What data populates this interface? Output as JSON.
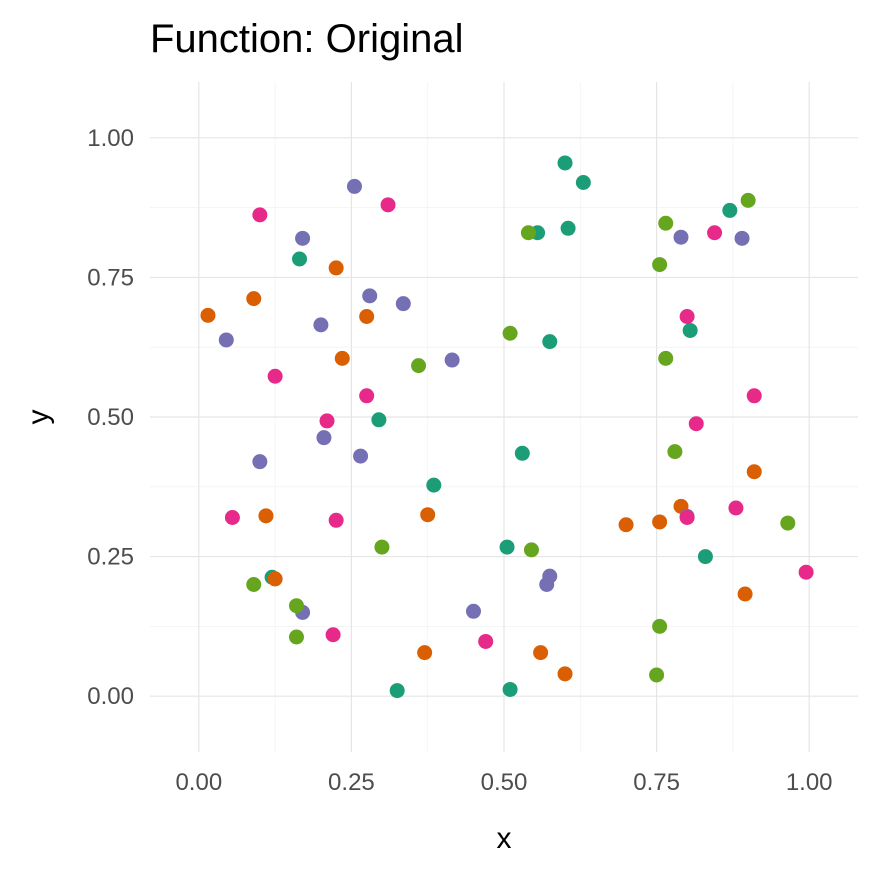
{
  "chart_data": {
    "type": "scatter",
    "title": "Function: Original",
    "xlabel": "x",
    "ylabel": "y",
    "xlim": [
      -0.08,
      1.08
    ],
    "ylim": [
      -0.1,
      1.1
    ],
    "x_ticks": [
      "0.00",
      "0.25",
      "0.50",
      "0.75",
      "1.00"
    ],
    "y_ticks": [
      "0.00",
      "0.25",
      "0.50",
      "0.75",
      "1.00"
    ],
    "grid": true,
    "legend": "none",
    "colors": [
      "#1b9e77",
      "#d95f02",
      "#7570b3",
      "#e7298a",
      "#66a61e"
    ],
    "series": [
      {
        "color": "#1b9e77",
        "points": [
          [
            0.6,
            0.955
          ],
          [
            0.63,
            0.92
          ],
          [
            0.87,
            0.87
          ],
          [
            0.555,
            0.83
          ],
          [
            0.605,
            0.838
          ],
          [
            0.165,
            0.783
          ],
          [
            0.805,
            0.655
          ],
          [
            0.575,
            0.635
          ],
          [
            0.295,
            0.495
          ],
          [
            0.53,
            0.435
          ],
          [
            0.385,
            0.378
          ],
          [
            0.505,
            0.267
          ],
          [
            0.83,
            0.25
          ],
          [
            0.12,
            0.213
          ],
          [
            0.325,
            0.01
          ],
          [
            0.51,
            0.012
          ]
        ]
      },
      {
        "color": "#d95f02",
        "points": [
          [
            0.225,
            0.767
          ],
          [
            0.09,
            0.712
          ],
          [
            0.015,
            0.682
          ],
          [
            0.275,
            0.68
          ],
          [
            0.235,
            0.605
          ],
          [
            0.91,
            0.402
          ],
          [
            0.79,
            0.34
          ],
          [
            0.11,
            0.323
          ],
          [
            0.375,
            0.325
          ],
          [
            0.7,
            0.307
          ],
          [
            0.755,
            0.312
          ],
          [
            0.125,
            0.21
          ],
          [
            0.895,
            0.183
          ],
          [
            0.37,
            0.078
          ],
          [
            0.56,
            0.078
          ],
          [
            0.6,
            0.04
          ]
        ]
      },
      {
        "color": "#7570b3",
        "points": [
          [
            0.255,
            0.913
          ],
          [
            0.17,
            0.82
          ],
          [
            0.79,
            0.822
          ],
          [
            0.89,
            0.82
          ],
          [
            0.28,
            0.717
          ],
          [
            0.335,
            0.703
          ],
          [
            0.2,
            0.665
          ],
          [
            0.045,
            0.638
          ],
          [
            0.415,
            0.602
          ],
          [
            0.205,
            0.463
          ],
          [
            0.1,
            0.42
          ],
          [
            0.265,
            0.43
          ],
          [
            0.8,
            0.322
          ],
          [
            0.575,
            0.215
          ],
          [
            0.57,
            0.2
          ],
          [
            0.17,
            0.15
          ],
          [
            0.45,
            0.152
          ]
        ]
      },
      {
        "color": "#e7298a",
        "points": [
          [
            0.31,
            0.88
          ],
          [
            0.1,
            0.862
          ],
          [
            0.845,
            0.83
          ],
          [
            0.8,
            0.68
          ],
          [
            0.125,
            0.573
          ],
          [
            0.275,
            0.538
          ],
          [
            0.91,
            0.538
          ],
          [
            0.21,
            0.493
          ],
          [
            0.815,
            0.488
          ],
          [
            0.055,
            0.32
          ],
          [
            0.225,
            0.315
          ],
          [
            0.88,
            0.337
          ],
          [
            0.8,
            0.32
          ],
          [
            0.995,
            0.222
          ],
          [
            0.22,
            0.11
          ],
          [
            0.47,
            0.098
          ]
        ]
      },
      {
        "color": "#66a61e",
        "points": [
          [
            0.9,
            0.888
          ],
          [
            0.765,
            0.847
          ],
          [
            0.54,
            0.83
          ],
          [
            0.755,
            0.773
          ],
          [
            0.51,
            0.65
          ],
          [
            0.765,
            0.605
          ],
          [
            0.36,
            0.592
          ],
          [
            0.78,
            0.438
          ],
          [
            0.965,
            0.31
          ],
          [
            0.3,
            0.267
          ],
          [
            0.545,
            0.262
          ],
          [
            0.09,
            0.2
          ],
          [
            0.16,
            0.162
          ],
          [
            0.16,
            0.106
          ],
          [
            0.755,
            0.125
          ],
          [
            0.75,
            0.038
          ]
        ]
      }
    ]
  }
}
